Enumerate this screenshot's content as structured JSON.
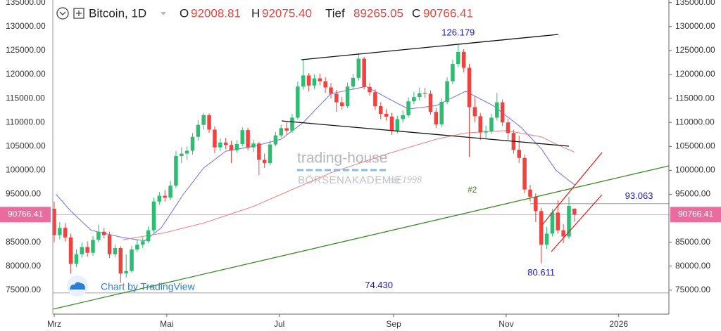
{
  "header": {
    "symbol": "Bitcoin, 1D",
    "labels": [
      "O",
      "H",
      "Tief",
      "C"
    ],
    "values": [
      "92008.81",
      "92075.40",
      "89265.05",
      "90766.41"
    ]
  },
  "chart_data": {
    "type": "candlestick",
    "x": [
      0,
      3,
      6,
      9,
      12,
      15,
      18,
      21,
      24,
      27,
      30,
      33,
      36,
      39,
      42,
      45,
      48,
      51,
      54,
      57,
      60,
      63,
      66,
      69,
      72,
      75,
      78,
      81,
      84,
      87,
      90,
      93,
      96,
      99,
      102,
      105,
      108,
      111,
      114,
      117,
      120,
      123,
      126,
      129,
      132,
      135,
      138,
      141,
      144,
      147,
      150,
      153,
      156,
      159,
      162,
      165,
      168,
      171,
      174,
      177,
      180,
      183,
      186,
      189,
      192,
      195,
      198,
      201,
      204,
      207,
      210,
      213,
      216,
      219,
      222,
      225,
      228,
      231,
      234,
      237,
      240,
      243,
      246,
      249,
      252,
      255,
      258,
      261,
      264,
      267,
      270,
      273,
      276,
      279,
      282
    ],
    "open": [
      92000,
      86500,
      88000,
      86000,
      80500,
      82500,
      84000,
      82800,
      85500,
      87200,
      86500,
      82500,
      83800,
      78500,
      79000,
      83500,
      84500,
      85200,
      87500,
      93500,
      94700,
      94300,
      96800,
      103000,
      103500,
      104100,
      107000,
      109500,
      111500,
      108500,
      104800,
      105800,
      105300,
      104200,
      105500,
      108400,
      104800,
      105600,
      102200,
      101500,
      105400,
      107300,
      108800,
      108300,
      111000,
      117500,
      119800,
      117700,
      119200,
      118600,
      117300,
      116000,
      114200,
      113400,
      117500,
      119300,
      123300,
      117400,
      116300,
      113400,
      111800,
      111200,
      108300,
      110700,
      111500,
      114400,
      115300,
      116100,
      116000,
      112200,
      109600,
      114300,
      118600,
      122200,
      124700,
      121400,
      113200,
      111300,
      107900,
      108200,
      111000,
      114200,
      110000,
      107800,
      104300,
      102600,
      96000,
      94500,
      91500,
      84500,
      86800,
      91200,
      87500,
      86200,
      92008.81
    ],
    "high": [
      93500,
      89200,
      89000,
      86800,
      83500,
      85000,
      85200,
      86300,
      88700,
      88000,
      87200,
      84500,
      84200,
      82500,
      84300,
      85500,
      86000,
      88300,
      94300,
      95500,
      95900,
      97800,
      104000,
      104800,
      105000,
      107800,
      110500,
      112000,
      111900,
      109200,
      106700,
      106800,
      106200,
      106300,
      109000,
      108900,
      106400,
      106000,
      103500,
      106200,
      108000,
      109500,
      110000,
      111800,
      118500,
      123200,
      120300,
      120000,
      120200,
      119400,
      118200,
      116800,
      115300,
      118300,
      120100,
      124500,
      123700,
      118200,
      117000,
      114200,
      112800,
      112000,
      111400,
      112500,
      115200,
      116400,
      117300,
      117200,
      116700,
      113000,
      115000,
      119400,
      123100,
      126179,
      125300,
      122200,
      115400,
      112000,
      109300,
      111800,
      116200,
      114800,
      110800,
      108500,
      107200,
      103300,
      97000,
      95200,
      92200,
      88200,
      92000,
      93800,
      88800,
      94500,
      92075.4
    ],
    "low": [
      85000,
      85600,
      85200,
      78500,
      79800,
      81800,
      82000,
      82200,
      85000,
      85800,
      81700,
      81900,
      76500,
      77600,
      78600,
      83000,
      83800,
      84800,
      87000,
      92800,
      93500,
      93800,
      96300,
      101500,
      102200,
      103300,
      106200,
      108500,
      107800,
      103600,
      104000,
      104400,
      101500,
      103700,
      105000,
      104200,
      103800,
      99000,
      100500,
      101000,
      105000,
      106800,
      107500,
      107800,
      110600,
      116800,
      116500,
      117000,
      117800,
      116200,
      115000,
      112200,
      112700,
      113000,
      116800,
      118700,
      116900,
      115600,
      112600,
      110700,
      110400,
      107400,
      107700,
      110000,
      111000,
      113800,
      114600,
      115100,
      111600,
      108800,
      109000,
      113800,
      118000,
      121600,
      120500,
      102800,
      110100,
      106300,
      106800,
      107600,
      110400,
      109300,
      106400,
      103500,
      101500,
      95200,
      93500,
      89200,
      80611,
      83600,
      86200,
      86800,
      84800,
      85700,
      89265.05
    ],
    "close": [
      86500,
      88000,
      86000,
      80500,
      82500,
      84000,
      82800,
      85500,
      87200,
      86500,
      82500,
      83800,
      78500,
      79000,
      83500,
      84500,
      85200,
      87500,
      93500,
      94700,
      94300,
      96800,
      103000,
      103500,
      104100,
      107000,
      109500,
      111500,
      108500,
      104800,
      105800,
      105300,
      104200,
      105500,
      108400,
      104800,
      105600,
      102200,
      101500,
      105400,
      107300,
      108800,
      108300,
      111000,
      117500,
      119800,
      117700,
      119200,
      118600,
      117300,
      116000,
      114200,
      113400,
      117500,
      119300,
      123300,
      117400,
      116300,
      113400,
      111800,
      111200,
      108300,
      110700,
      111500,
      114400,
      115300,
      116100,
      116000,
      112200,
      109600,
      114300,
      118600,
      122200,
      124700,
      121400,
      113200,
      111300,
      107900,
      108200,
      111000,
      114200,
      110000,
      107800,
      104300,
      102600,
      96000,
      94500,
      91500,
      84500,
      86800,
      91200,
      87500,
      86200,
      92600,
      90766.41
    ],
    "up_color": "#2dbd72",
    "down_color": "#f0423f",
    "lines": [
      {
        "color": "#6f6ff0",
        "x": [
          1,
          9,
          20,
          37,
          49,
          58,
          70,
          81,
          93,
          108,
          123,
          135,
          150,
          169,
          181,
          192,
          207,
          223,
          238,
          253,
          264,
          272,
          282
        ],
        "values": [
          95000,
          91500,
          87500,
          86000,
          85300,
          88000,
          95000,
          100500,
          104000,
          105000,
          106500,
          110000,
          116000,
          117500,
          115000,
          112800,
          113500,
          116500,
          113500,
          109000,
          104500,
          100000,
          97000
        ]
      },
      {
        "color": "#f08080",
        "x": [
          37,
          60,
          81,
          108,
          123,
          150,
          181,
          207,
          223,
          245,
          264,
          272,
          282
        ],
        "values": [
          85500,
          87000,
          89000,
          92500,
          95000,
          99500,
          103500,
          106500,
          107800,
          108300,
          107000,
          105500,
          103800
        ]
      }
    ],
    "xlim": [
      -0.76,
      333.2
    ],
    "xticks": [
      {
        "value": 0,
        "label": "Mrz"
      },
      {
        "value": 61,
        "label": "Mai"
      },
      {
        "value": 122,
        "label": "Jul"
      },
      {
        "value": 184,
        "label": "Sep"
      },
      {
        "value": 245,
        "label": "Nov"
      },
      {
        "value": 306,
        "label": "2026"
      }
    ],
    "ylim": [
      70000,
      135550
    ],
    "yticks": [
      {
        "value": 75000,
        "label": "75000.00"
      },
      {
        "value": 80000,
        "label": "80000.00"
      },
      {
        "value": 85000,
        "label": "85000.00"
      },
      {
        "value": 95000,
        "label": "95000.00"
      },
      {
        "value": 100000,
        "label": "100000.00"
      },
      {
        "value": 105000,
        "label": "105000.00"
      },
      {
        "value": 110000,
        "label": "110000.00"
      },
      {
        "value": 115000,
        "label": "115000.00"
      },
      {
        "value": 120000,
        "label": "120000.00"
      },
      {
        "value": 125000,
        "label": "125000.00"
      },
      {
        "value": 130000,
        "label": "130000.00"
      },
      {
        "value": 135000,
        "label": "135000.00"
      }
    ],
    "price_line": 90766.41,
    "annotations": [
      {
        "value": 126179,
        "label": "126.179",
        "x": 219
      },
      {
        "value": 80611,
        "label": "80.611",
        "x": 264
      },
      {
        "value": 74430,
        "label": "74.430",
        "x": 176,
        "line": true
      },
      {
        "value": 93063,
        "label": "93.063",
        "x": 317,
        "line": true
      }
    ],
    "notes": [
      "#2"
    ],
    "watermark": [
      "trading-house",
      "BÖRSENAKADEMIE",
      "est 1998"
    ],
    "attribution": "Chart by TradingView"
  }
}
